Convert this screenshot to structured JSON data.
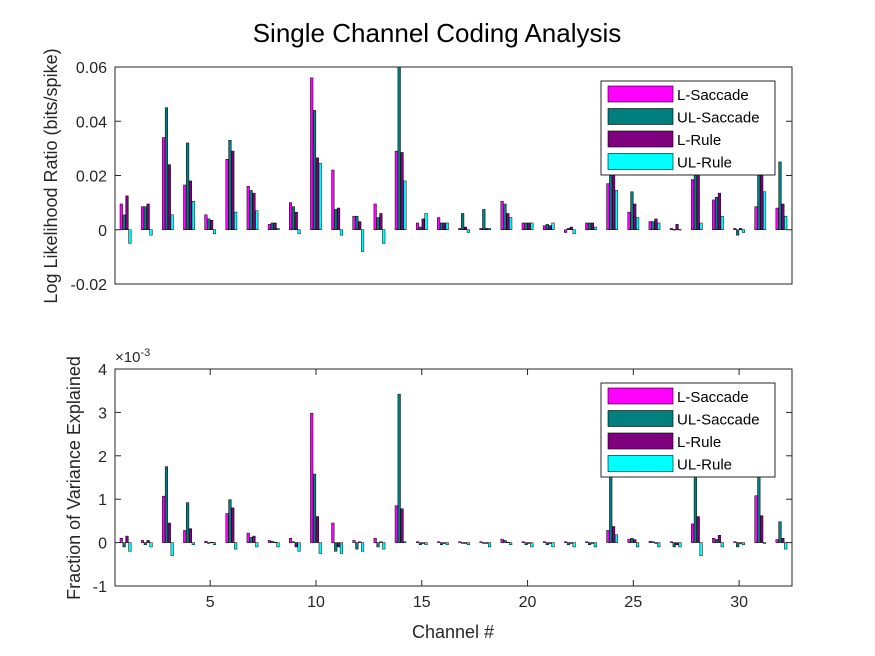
{
  "title": "Single Channel Coding Analysis",
  "colors": {
    "L-Saccade": "#ff00ff",
    "UL-Saccade": "#007f7f",
    "L-Rule": "#7f007f",
    "UL-Rule": "#00ffff"
  },
  "chart_data": [
    {
      "type": "bar",
      "ylabel": "Log Likelihood Ratio (bits/spike)",
      "xlabel": "",
      "ylim": [
        -0.02,
        0.06
      ],
      "xlim": [
        0.5,
        32.5
      ],
      "yticks": [
        "-0.02",
        "0",
        "0.02",
        "0.04",
        "0.06"
      ],
      "legend_position": "top-right",
      "categories": [
        1,
        2,
        3,
        4,
        5,
        6,
        7,
        8,
        9,
        10,
        11,
        12,
        13,
        14,
        15,
        16,
        17,
        18,
        19,
        20,
        21,
        22,
        23,
        24,
        25,
        26,
        27,
        28,
        29,
        30,
        31,
        32
      ],
      "series": [
        {
          "name": "L-Saccade",
          "values": [
            0.0095,
            0.0085,
            0.034,
            0.0165,
            0.0055,
            0.026,
            0.016,
            0.002,
            0.01,
            0.056,
            0.022,
            0.005,
            0.0095,
            0.029,
            0.0025,
            0.0045,
            0.0005,
            0.0005,
            0.0105,
            0.0025,
            0.0015,
            -0.001,
            0.0025,
            0.017,
            0.0065,
            0.003,
            0.0005,
            0.0185,
            0.011,
            0.0005,
            0.0085,
            0.008
          ]
        },
        {
          "name": "UL-Saccade",
          "values": [
            0.0055,
            0.0085,
            0.045,
            0.032,
            0.004,
            0.033,
            0.0145,
            0.0025,
            0.0085,
            0.044,
            0.0075,
            0.005,
            0.0045,
            0.06,
            0.001,
            0.0025,
            0.006,
            0.0075,
            0.0095,
            0.0025,
            0.002,
            0.0005,
            0.0025,
            0.02,
            0.014,
            0.003,
            0.0001,
            0.02,
            0.012,
            -0.002,
            0.02,
            0.025
          ]
        },
        {
          "name": "L-Rule",
          "values": [
            0.0125,
            0.0095,
            0.024,
            0.018,
            0.0035,
            0.029,
            0.0135,
            0.0025,
            0.0065,
            0.0265,
            0.008,
            0.003,
            0.006,
            0.0285,
            0.004,
            0.0025,
            0.001,
            0.0005,
            0.006,
            0.0025,
            0.0015,
            0.001,
            0.0025,
            0.02,
            0.0095,
            0.004,
            0.002,
            0.02,
            0.0135,
            0.0005,
            0.02,
            0.0095
          ]
        },
        {
          "name": "UL-Rule",
          "values": [
            -0.005,
            -0.002,
            0.0055,
            0.0105,
            -0.0015,
            0.0065,
            0.007,
            0.0005,
            -0.0015,
            0.0245,
            -0.002,
            -0.008,
            -0.005,
            0.018,
            0.006,
            0.0025,
            -0.001,
            0.0005,
            0.0045,
            0.0025,
            0.0025,
            -0.0015,
            0.001,
            0.0145,
            0.0045,
            0.0025,
            0.0001,
            0.0025,
            0.005,
            -0.001,
            0.014,
            0.005
          ]
        }
      ]
    },
    {
      "type": "bar",
      "ylabel": "Fraction of Variance Explained",
      "xlabel": "Channel #",
      "ylim": [
        -1,
        4
      ],
      "y_multiplier": "×10",
      "y_multiplier_exp": "-3",
      "xlim": [
        0.5,
        32.5
      ],
      "yticks": [
        "-1",
        "0",
        "1",
        "2",
        "3",
        "4"
      ],
      "xticks": [
        "5",
        "10",
        "15",
        "20",
        "25",
        "30"
      ],
      "legend_position": "top-right",
      "categories": [
        1,
        2,
        3,
        4,
        5,
        6,
        7,
        8,
        9,
        10,
        11,
        12,
        13,
        14,
        15,
        16,
        17,
        18,
        19,
        20,
        21,
        22,
        23,
        24,
        25,
        26,
        27,
        28,
        29,
        30,
        31,
        32
      ],
      "series": [
        {
          "name": "L-Saccade",
          "values": [
            0.1,
            0.05,
            1.07,
            0.28,
            0.03,
            0.67,
            0.22,
            0.05,
            0.1,
            2.98,
            0.45,
            0.05,
            0.1,
            0.85,
            0.02,
            0.02,
            0.02,
            0.02,
            0.08,
            0.02,
            0.02,
            0.02,
            0.02,
            0.28,
            0.08,
            0.03,
            0.02,
            0.43,
            0.1,
            0.02,
            1.08,
            0.07
          ]
        },
        {
          "name": "UL-Saccade",
          "values": [
            -0.1,
            -0.05,
            1.75,
            0.92,
            -0.02,
            0.99,
            0.12,
            0.03,
            0.02,
            1.58,
            -0.2,
            -0.15,
            -0.1,
            3.42,
            -0.05,
            -0.05,
            -0.02,
            -0.02,
            0.05,
            -0.05,
            -0.05,
            -0.05,
            -0.05,
            1.8,
            0.1,
            0.02,
            -0.1,
            1.8,
            0.07,
            -0.1,
            1.6,
            0.48
          ]
        },
        {
          "name": "L-Rule",
          "values": [
            0.15,
            0.05,
            0.45,
            0.32,
            0.01,
            0.8,
            0.15,
            0.01,
            -0.1,
            0.6,
            -0.1,
            0.02,
            0.02,
            0.78,
            -0.02,
            -0.02,
            -0.02,
            -0.02,
            0.01,
            -0.02,
            -0.02,
            -0.02,
            -0.02,
            0.37,
            0.07,
            -0.02,
            -0.05,
            0.6,
            0.17,
            -0.02,
            0.62,
            0.1
          ]
        },
        {
          "name": "UL-Rule",
          "values": [
            -0.2,
            -0.1,
            -0.3,
            -0.05,
            -0.05,
            -0.15,
            -0.1,
            -0.1,
            -0.2,
            -0.25,
            -0.25,
            -0.2,
            -0.15,
            0.02,
            -0.05,
            -0.05,
            -0.05,
            -0.1,
            -0.05,
            -0.1,
            -0.1,
            -0.1,
            -0.1,
            0.18,
            -0.1,
            -0.1,
            -0.1,
            -0.3,
            -0.1,
            -0.05,
            -0.02,
            -0.15
          ]
        }
      ]
    }
  ]
}
